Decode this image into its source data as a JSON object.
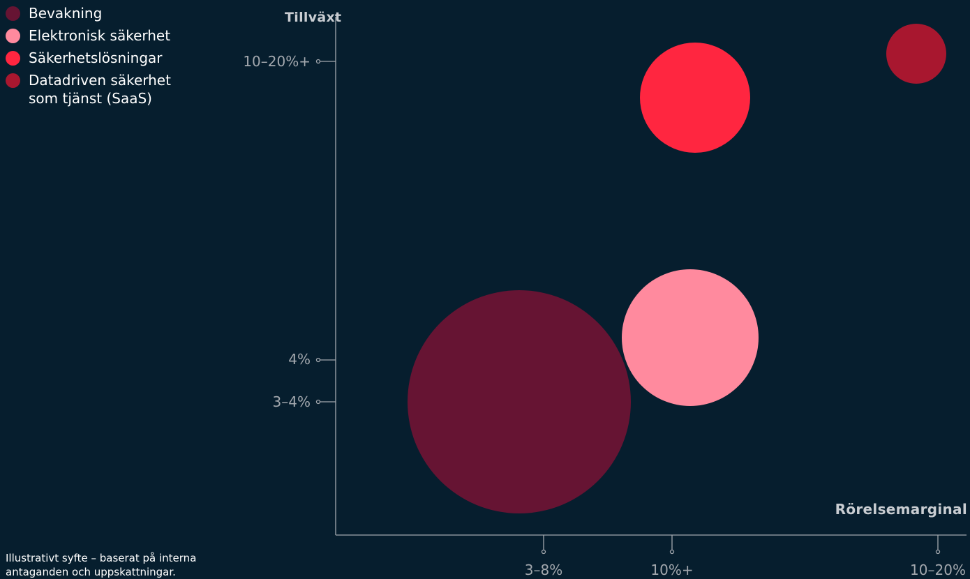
{
  "chart_data": {
    "type": "scatter",
    "title": "",
    "xlabel": "Rörelsemarginal",
    "ylabel": "Tillväxt",
    "xticks": [
      "3–8%",
      "10%+",
      "10–20%"
    ],
    "yticks": [
      "10–20%+",
      "4%",
      "3–4%"
    ],
    "series": [
      {
        "name": "Bevakning",
        "x": "3–8%",
        "y": "3–4%",
        "size": 160,
        "color": "#661433"
      },
      {
        "name": "Elektronisk säkerhet",
        "x": "10%+",
        "y": "4%",
        "size": 98,
        "color": "#ff8a9e"
      },
      {
        "name": "Säkerhetslösningar",
        "x": "10%+",
        "y": "10–20%+",
        "size": 79,
        "color": "#ff2640"
      },
      {
        "name": "Datadriven säkerhet som tjänst (SaaS)",
        "x": "10–20%",
        "y": "10–20%+",
        "size": 43,
        "color": "#a8172f"
      }
    ],
    "grid": false,
    "legend": "top-left"
  },
  "legend": [
    {
      "label": "Bevakning",
      "color": "#661433"
    },
    {
      "label": "Elektronisk säkerhet",
      "color": "#ff8a9e"
    },
    {
      "label": "Säkerhetslösningar",
      "color": "#ff2640"
    },
    {
      "label": "Datadriven säkerhet som tjänst (SaaS)",
      "color": "#a8172f"
    }
  ],
  "footnote": "Illustrativt syfte – baserat på interna antaganden och uppskattningar."
}
